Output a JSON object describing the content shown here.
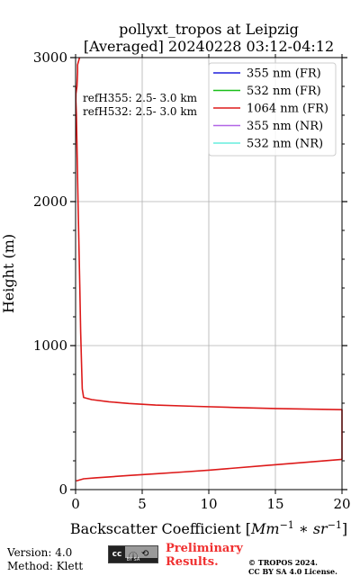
{
  "chart_data": {
    "type": "line",
    "title_line1": "pollyxt_tropos at Leipzig",
    "title_line2": "[Averaged] 20240228 03:12-04:12",
    "xlabel_prefix": "Backscatter Coefficient [",
    "xlabel_unit": "Mm",
    "xlabel_exp": "−1",
    "xlabel_mid": " ∗ ",
    "xlabel_unit2": "sr",
    "xlabel_exp2": "−1",
    "xlabel_suffix": "]",
    "ylabel": "Height (m)",
    "xlim": [
      0,
      20
    ],
    "ylim": [
      0,
      3000
    ],
    "x_major_ticks": [
      0,
      5,
      10,
      15,
      20
    ],
    "x_tick_labels": [
      "0",
      "5",
      "10",
      "15",
      "20"
    ],
    "y_major_ticks": [
      0,
      1000,
      2000,
      3000
    ],
    "y_tick_labels": [
      "0",
      "1000",
      "2000",
      "3000"
    ],
    "y_minor_ticks": [
      200,
      400,
      600,
      800,
      1200,
      1400,
      1600,
      1800,
      2200,
      2400,
      2600,
      2800
    ],
    "grid": true,
    "legend_position": "top-right",
    "annotations": [
      "refH355:  2.5- 3.0 km",
      "refH532:  2.5- 3.0 km"
    ],
    "series": [
      {
        "name": "355 nm (FR)",
        "color": "#1f1fdb",
        "x": [],
        "y": []
      },
      {
        "name": "532 nm (FR)",
        "color": "#19bf19",
        "x": [],
        "y": []
      },
      {
        "name": "1064 nm (FR)",
        "color": "#dd1a1a",
        "x": [
          0.05,
          0.6,
          1.5,
          2.5,
          4,
          6,
          8,
          10,
          12,
          14,
          16,
          18,
          20,
          20,
          18,
          15,
          12,
          9,
          6,
          4,
          2.5,
          1.2,
          0.6,
          0.5,
          0.45,
          0.38,
          0.32,
          0.25,
          0.18,
          0.12,
          0.06,
          0.02,
          0.03,
          0.1,
          0.15,
          0.15,
          0.3
        ],
        "y": [
          60,
          75,
          82,
          88,
          98,
          110,
          122,
          135,
          150,
          165,
          180,
          195,
          210,
          555,
          558,
          563,
          570,
          578,
          587,
          598,
          610,
          625,
          640,
          700,
          850,
          1100,
          1400,
          1700,
          2000,
          2300,
          2600,
          2700,
          2750,
          2800,
          2900,
          2950,
          3000
        ]
      },
      {
        "name": "355 nm (NR)",
        "color": "#b266e6",
        "x": [],
        "y": []
      },
      {
        "name": "532 nm (NR)",
        "color": "#66eedd",
        "x": [],
        "y": []
      }
    ]
  },
  "footer": {
    "version": "Version: 4.0",
    "method": "Method: Klett",
    "cc_badge": "cc",
    "cc_strip": "BY   SA",
    "prelim_line1": "Preliminary",
    "prelim_line2": "Results.",
    "license_line1": "© TROPOS 2024.",
    "license_line2": "CC BY SA 4.0 License."
  }
}
